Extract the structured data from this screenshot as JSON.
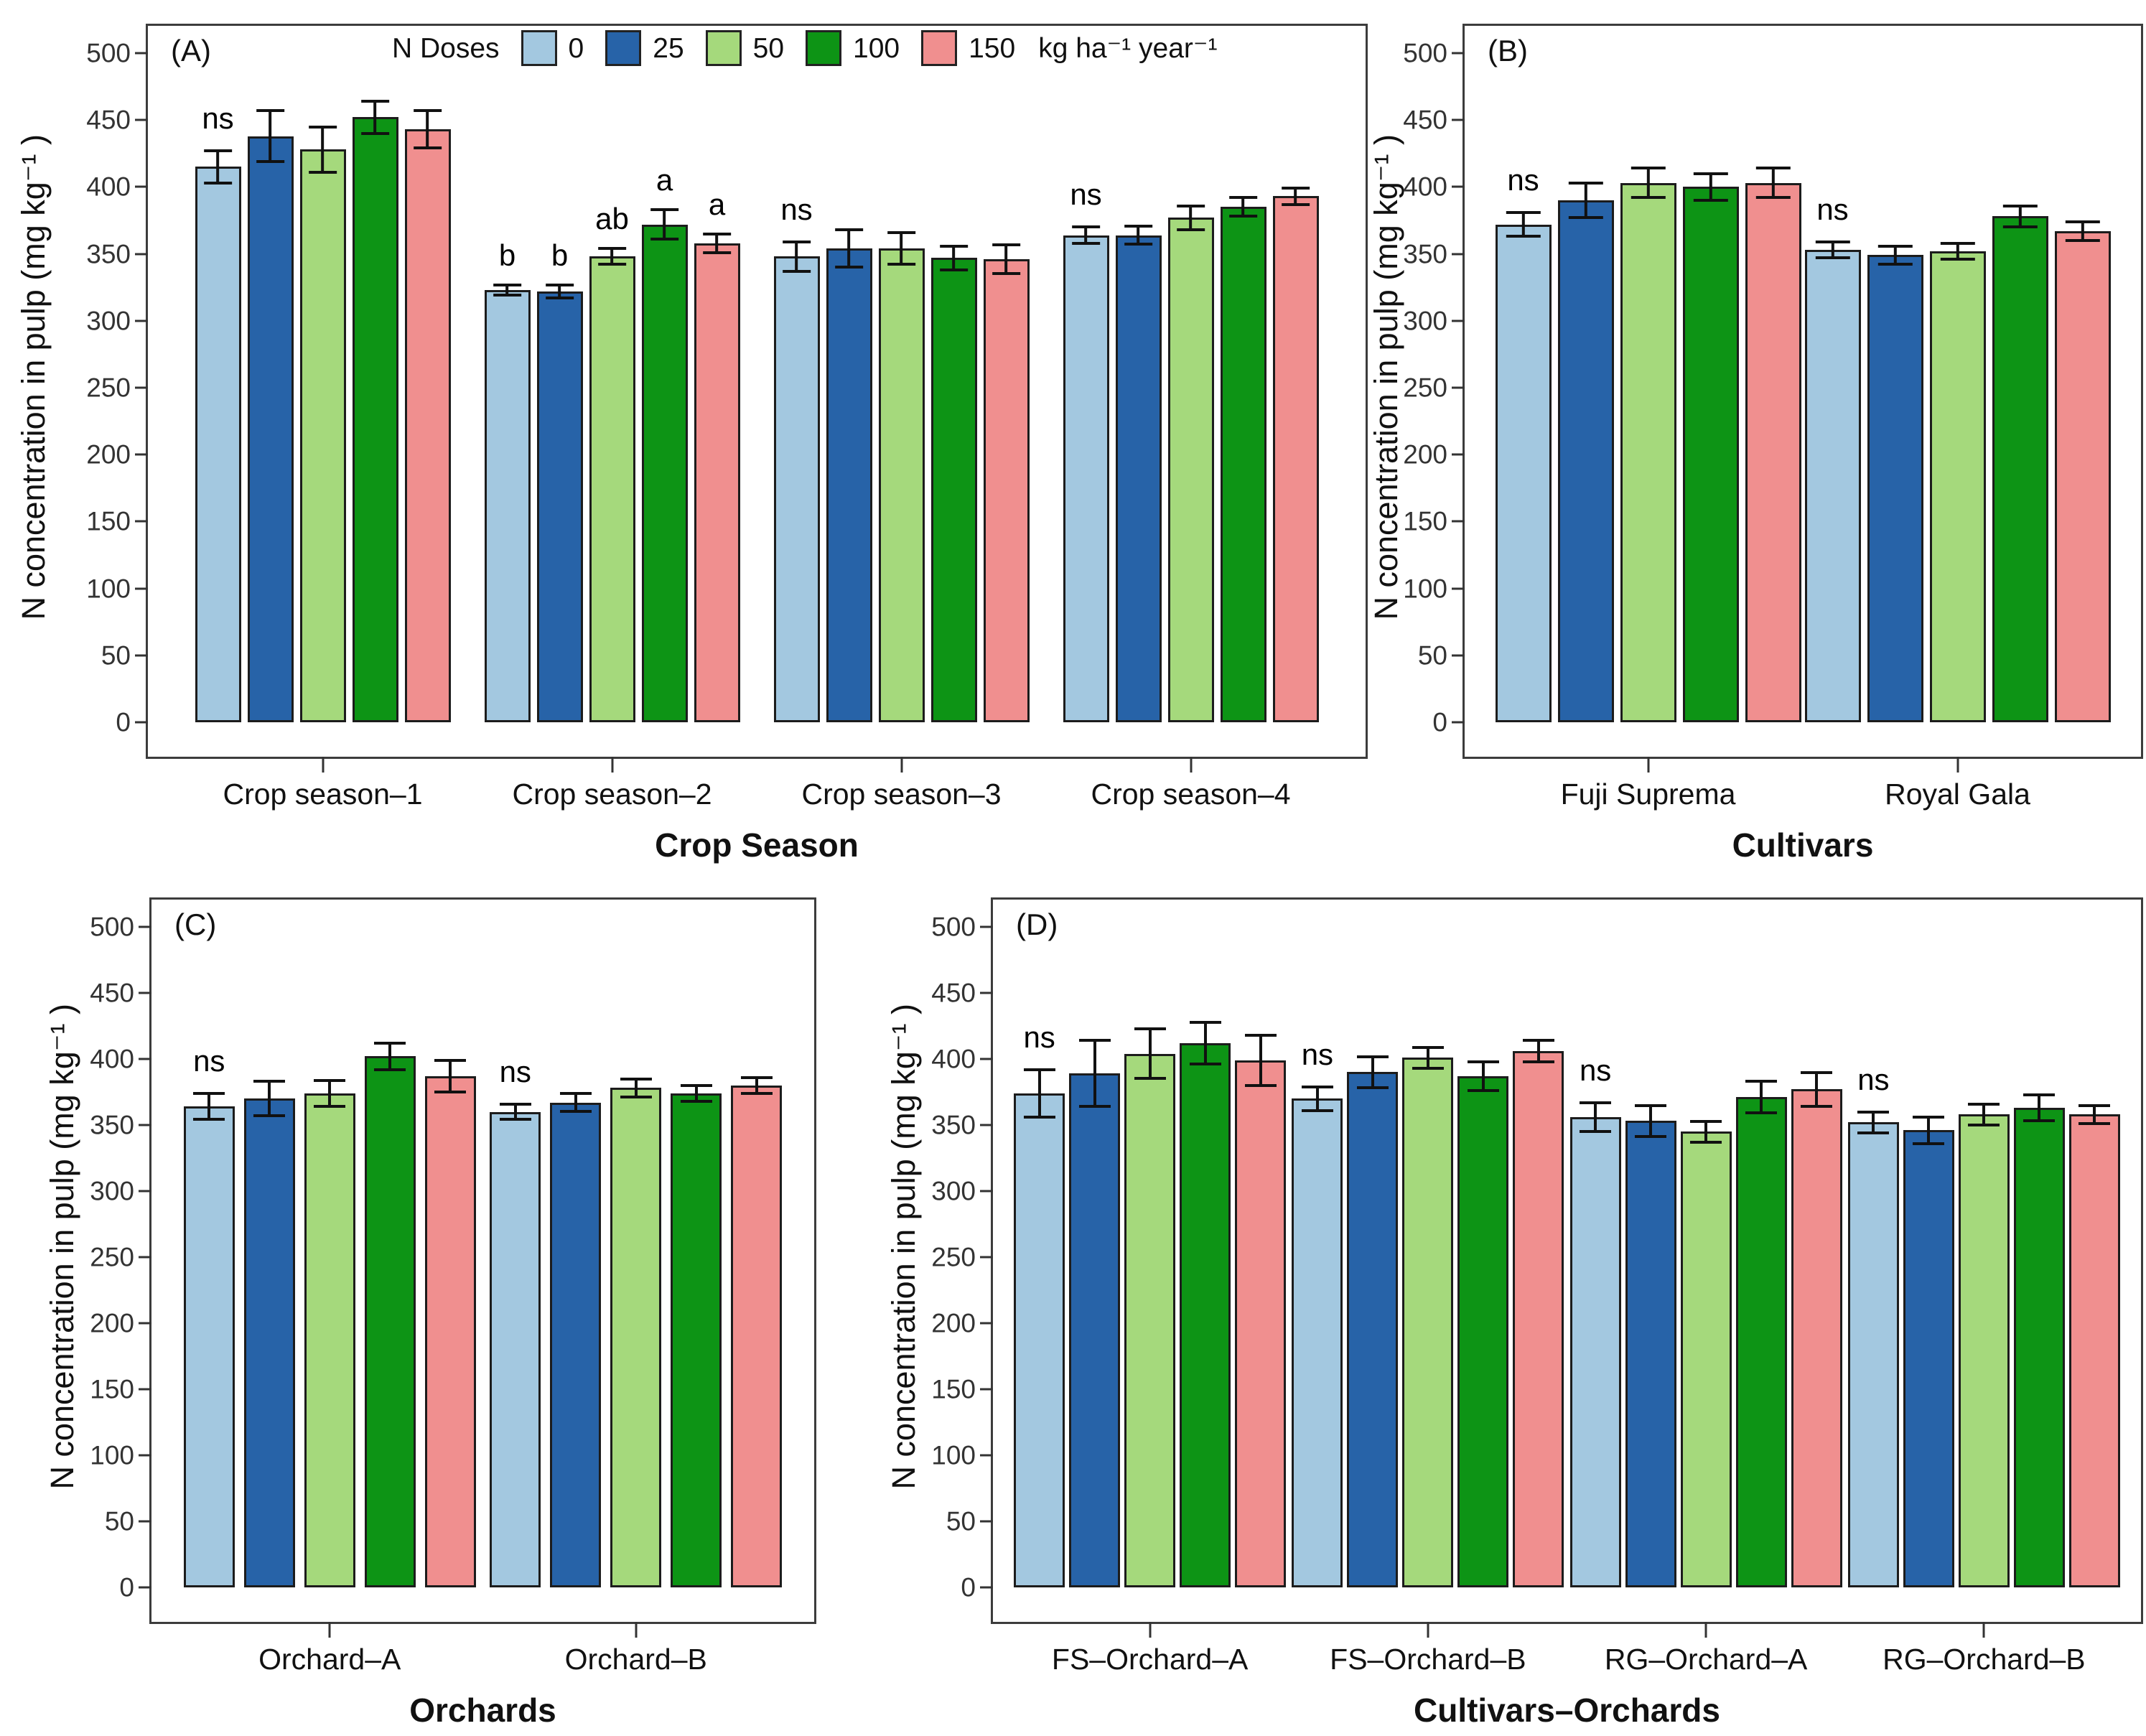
{
  "chart_data": {
    "type": "bar",
    "ylabel": "N concentration in pulp (mg kg⁻¹ )",
    "ylim": [
      0,
      500
    ],
    "ytick_step": 50,
    "grid": false,
    "legend": {
      "title": "N Doses",
      "unit": "kg ha⁻¹ year⁻¹",
      "position": "top-inside-panel-A",
      "entries": [
        {
          "label": "0",
          "color": "#a3c8e0"
        },
        {
          "label": "25",
          "color": "#2763a8"
        },
        {
          "label": "50",
          "color": "#a5d97c"
        },
        {
          "label": "100",
          "color": "#0d9415"
        },
        {
          "label": "150",
          "color": "#f08f8f"
        }
      ]
    },
    "panels": [
      {
        "letter": "(A)",
        "xlabel": "Crop Season",
        "groups": [
          {
            "category": "Crop season–1",
            "sig": "ns",
            "values": [
              415,
              438,
              428,
              452,
              443
            ],
            "errors": [
              13,
              20,
              18,
              13,
              15
            ]
          },
          {
            "category": "Crop season–2",
            "letters": [
              "b",
              "b",
              "ab",
              "a",
              "a"
            ],
            "values": [
              323,
              322,
              348,
              372,
              358
            ],
            "errors": [
              5,
              6,
              7,
              12,
              8
            ]
          },
          {
            "category": "Crop season–3",
            "sig": "ns",
            "values": [
              348,
              354,
              354,
              347,
              346
            ],
            "errors": [
              12,
              15,
              13,
              10,
              12
            ]
          },
          {
            "category": "Crop season–4",
            "sig": "ns",
            "values": [
              364,
              364,
              377,
              385,
              393
            ],
            "errors": [
              7,
              8,
              10,
              8,
              7
            ]
          }
        ]
      },
      {
        "letter": "(B)",
        "xlabel": "Cultivars",
        "groups": [
          {
            "category": "Fuji Suprema",
            "sig": "ns",
            "values": [
              372,
              390,
              403,
              400,
              403
            ],
            "errors": [
              10,
              14,
              12,
              11,
              12
            ]
          },
          {
            "category": "Royal Gala",
            "sig": "ns",
            "values": [
              353,
              349,
              352,
              378,
              367
            ],
            "errors": [
              7,
              8,
              7,
              9,
              8
            ]
          }
        ]
      },
      {
        "letter": "(C)",
        "xlabel": "Orchards",
        "groups": [
          {
            "category": "Orchard–A",
            "sig": "ns",
            "values": [
              364,
              370,
              374,
              402,
              387
            ],
            "errors": [
              11,
              14,
              11,
              11,
              13
            ]
          },
          {
            "category": "Orchard–B",
            "sig": "ns",
            "values": [
              360,
              367,
              378,
              374,
              380
            ],
            "errors": [
              7,
              8,
              8,
              7,
              7
            ]
          }
        ]
      },
      {
        "letter": "(D)",
        "xlabel": "Cultivars–Orchards",
        "groups": [
          {
            "category": "FS–Orchard–A",
            "sig": "ns",
            "values": [
              374,
              389,
              404,
              412,
              399
            ],
            "errors": [
              19,
              26,
              20,
              17,
              20
            ]
          },
          {
            "category": "FS–Orchard–B",
            "sig": "ns",
            "values": [
              370,
              390,
              401,
              387,
              406
            ],
            "errors": [
              10,
              13,
              9,
              12,
              9
            ]
          },
          {
            "category": "RG–Orchard–A",
            "sig": "ns",
            "values": [
              356,
              353,
              345,
              371,
              377
            ],
            "errors": [
              12,
              13,
              9,
              13,
              14
            ]
          },
          {
            "category": "RG–Orchard–B",
            "sig": "ns",
            "values": [
              352,
              346,
              358,
              363,
              358
            ],
            "errors": [
              9,
              11,
              9,
              11,
              8
            ]
          }
        ]
      }
    ]
  }
}
